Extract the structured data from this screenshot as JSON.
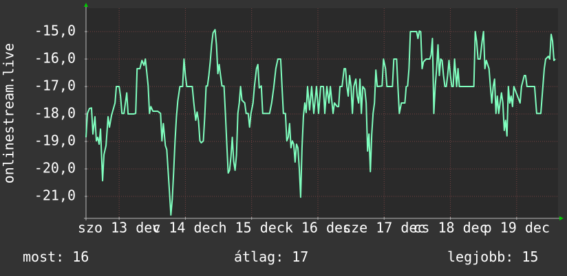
{
  "chart_data": {
    "type": "line",
    "y_label": "onlinestream.live",
    "grid": true,
    "xlim": [
      13.0,
      20.125
    ],
    "ylim": [
      -21.8,
      -14.15
    ],
    "yticks": [
      {
        "value": -21,
        "label": "-21,0"
      },
      {
        "value": -20,
        "label": "-20,0"
      },
      {
        "value": -19,
        "label": "-19,0"
      },
      {
        "value": -18,
        "label": "-18,0"
      },
      {
        "value": -17,
        "label": "-17,0"
      },
      {
        "value": -16,
        "label": "-16,0"
      },
      {
        "value": -15,
        "label": "-15,0"
      }
    ],
    "xticks": [
      {
        "value": 13.5,
        "label": "szo 13 dec"
      },
      {
        "value": 14.5,
        "label": "v 14 dec"
      },
      {
        "value": 15.5,
        "label": "h 15 dec"
      },
      {
        "value": 16.5,
        "label": "k 16 dec"
      },
      {
        "value": 17.5,
        "label": "sze 17 dec"
      },
      {
        "value": 18.5,
        "label": "cs 18 dec"
      },
      {
        "value": 19.5,
        "label": "p 19 dec"
      }
    ],
    "x": [
      13.0,
      13.021,
      13.052,
      13.083,
      13.104,
      13.135,
      13.156,
      13.177,
      13.198,
      13.219,
      13.25,
      13.271,
      13.302,
      13.333,
      13.354,
      13.385,
      13.438,
      13.458,
      13.5,
      13.521,
      13.542,
      13.573,
      13.594,
      13.615,
      13.635,
      13.719,
      13.75,
      13.771,
      13.813,
      13.844,
      13.875,
      13.896,
      13.917,
      13.938,
      13.958,
      13.979,
      14.01,
      14.083,
      14.125,
      14.146,
      14.167,
      14.198,
      14.219,
      14.24,
      14.26,
      14.281,
      14.302,
      14.323,
      14.344,
      14.365,
      14.385,
      14.417,
      14.458,
      14.479,
      14.5,
      14.521,
      14.604,
      14.625,
      14.656,
      14.677,
      14.698,
      14.719,
      14.74,
      14.771,
      14.792,
      14.813,
      14.833,
      14.854,
      14.875,
      14.896,
      14.917,
      14.948,
      14.969,
      14.99,
      15.01,
      15.031,
      15.052,
      15.083,
      15.104,
      15.125,
      15.146,
      15.167,
      15.188,
      15.208,
      15.229,
      15.25,
      15.271,
      15.292,
      15.313,
      15.333,
      15.354,
      15.396,
      15.417,
      15.448,
      15.469,
      15.49,
      15.521,
      15.542,
      15.573,
      15.594,
      15.615,
      15.646,
      15.667,
      15.771,
      15.802,
      15.833,
      15.865,
      15.896,
      15.938,
      15.958,
      15.979,
      16.01,
      16.031,
      16.052,
      16.073,
      16.094,
      16.115,
      16.135,
      16.156,
      16.177,
      16.198,
      16.219,
      16.24,
      16.26,
      16.281,
      16.302,
      16.323,
      16.344,
      16.375,
      16.406,
      16.438,
      16.479,
      16.51,
      16.542,
      16.583,
      16.604,
      16.635,
      16.667,
      16.688,
      16.708,
      16.729,
      16.75,
      16.792,
      16.813,
      16.833,
      16.865,
      16.896,
      16.917,
      16.938,
      16.958,
      16.979,
      17.0,
      17.021,
      17.042,
      17.073,
      17.094,
      17.115,
      17.135,
      17.156,
      17.177,
      17.208,
      17.229,
      17.25,
      17.271,
      17.292,
      17.313,
      17.333,
      17.354,
      17.375,
      17.396,
      17.469,
      17.49,
      17.521,
      17.542,
      17.625,
      17.646,
      17.688,
      17.708,
      17.729,
      17.76,
      17.813,
      17.833,
      17.854,
      17.875,
      17.896,
      17.99,
      18.01,
      18.031,
      18.052,
      18.073,
      18.094,
      18.135,
      18.188,
      18.208,
      18.229,
      18.25,
      18.271,
      18.292,
      18.313,
      18.333,
      18.354,
      18.375,
      18.396,
      18.417,
      18.438,
      18.458,
      18.479,
      18.5,
      18.521,
      18.542,
      18.563,
      18.594,
      18.615,
      18.635,
      18.854,
      18.875,
      18.896,
      18.917,
      18.948,
      18.979,
      19.0,
      19.021,
      19.042,
      19.083,
      19.104,
      19.125,
      19.146,
      19.167,
      19.188,
      19.208,
      19.229,
      19.25,
      19.271,
      19.292,
      19.313,
      19.333,
      19.354,
      19.375,
      19.396,
      19.417,
      19.438,
      19.458,
      19.552,
      19.573,
      19.615,
      19.635,
      19.656,
      19.771,
      19.802,
      19.865,
      19.896,
      19.917,
      19.938,
      19.979,
      20.0,
      20.021,
      20.042,
      20.063,
      20.083
    ],
    "series": [
      {
        "color": "#80ffbf",
        "values": [
          -18.85,
          -17.98,
          -17.8,
          -17.78,
          -18.73,
          -18.1,
          -18.98,
          -18.85,
          -19.1,
          -18.55,
          -20.43,
          -19.48,
          -19.15,
          -18.1,
          -18.48,
          -18.05,
          -17.6,
          -17.0,
          -17.0,
          -17.35,
          -17.98,
          -17.98,
          -17.6,
          -17.23,
          -18.0,
          -18.0,
          -17.98,
          -16.35,
          -16.35,
          -16.05,
          -16.23,
          -16.0,
          -16.48,
          -16.98,
          -17.98,
          -17.73,
          -17.9,
          -17.9,
          -17.98,
          -18.98,
          -18.35,
          -19.15,
          -19.3,
          -20.1,
          -20.85,
          -21.68,
          -21.1,
          -20.1,
          -18.98,
          -18.1,
          -17.53,
          -17.0,
          -17.0,
          -16.0,
          -16.6,
          -17.0,
          -17.0,
          -17.55,
          -18.23,
          -17.93,
          -18.25,
          -18.98,
          -19.05,
          -18.98,
          -18.1,
          -16.98,
          -16.98,
          -16.6,
          -16.1,
          -15.48,
          -15.05,
          -14.93,
          -15.48,
          -16.53,
          -16.2,
          -16.6,
          -16.98,
          -16.98,
          -17.98,
          -19.1,
          -20.15,
          -20.05,
          -19.55,
          -18.85,
          -19.73,
          -20.05,
          -19.5,
          -17.98,
          -17.6,
          -17.0,
          -17.5,
          -17.6,
          -17.98,
          -17.98,
          -18.48,
          -17.98,
          -17.6,
          -17.0,
          -16.35,
          -16.2,
          -17.05,
          -16.98,
          -17.98,
          -17.98,
          -17.6,
          -17.05,
          -16.35,
          -16.0,
          -16.0,
          -16.98,
          -17.98,
          -17.98,
          -18.98,
          -18.85,
          -18.35,
          -19.23,
          -18.98,
          -19.1,
          -19.75,
          -19.1,
          -19.23,
          -19.98,
          -21.03,
          -19.25,
          -18.1,
          -17.6,
          -17.95,
          -17.0,
          -17.85,
          -17.0,
          -17.98,
          -17.0,
          -17.98,
          -17.0,
          -17.0,
          -17.98,
          -17.0,
          -17.6,
          -17.0,
          -17.48,
          -17.98,
          -17.6,
          -17.73,
          -17.73,
          -17.0,
          -17.0,
          -16.35,
          -16.35,
          -17.0,
          -17.35,
          -16.6,
          -17.0,
          -17.98,
          -17.0,
          -16.73,
          -17.35,
          -17.6,
          -16.73,
          -17.98,
          -17.0,
          -17.1,
          -17.6,
          -19.35,
          -18.73,
          -20.1,
          -18.73,
          -17.98,
          -17.6,
          -16.4,
          -17.0,
          -16.98,
          -16.0,
          -16.35,
          -17.0,
          -17.0,
          -16.0,
          -16.0,
          -17.0,
          -17.98,
          -17.6,
          -17.6,
          -17.0,
          -16.98,
          -16.35,
          -15.0,
          -15.0,
          -15.25,
          -14.98,
          -15.0,
          -16.35,
          -16.1,
          -16.0,
          -16.0,
          -15.85,
          -15.25,
          -17.98,
          -16.98,
          -16.35,
          -15.48,
          -16.6,
          -16.0,
          -16.05,
          -16.6,
          -17.0,
          -17.0,
          -16.6,
          -16.05,
          -16.6,
          -17.0,
          -17.0,
          -16.0,
          -17.0,
          -16.35,
          -17.0,
          -17.0,
          -15.0,
          -15.35,
          -16.0,
          -16.0,
          -15.35,
          -15.0,
          -16.35,
          -16.05,
          -16.35,
          -17.0,
          -17.6,
          -17.0,
          -16.73,
          -17.98,
          -17.35,
          -17.98,
          -17.6,
          -17.23,
          -17.6,
          -18.6,
          -18.23,
          -18.8,
          -17.0,
          -17.6,
          -17.35,
          -17.73,
          -17.0,
          -17.6,
          -17.0,
          -16.6,
          -16.6,
          -17.0,
          -17.0,
          -17.98,
          -17.98,
          -17.0,
          -16.35,
          -16.0,
          -15.9,
          -16.0,
          -15.1,
          -15.35,
          -16.05,
          -16.0
        ]
      }
    ],
    "stats": [
      {
        "label": "most:",
        "value": 16
      },
      {
        "label": "átlag:",
        "value": 17
      },
      {
        "label": "legjobb:",
        "value": 15
      }
    ]
  }
}
